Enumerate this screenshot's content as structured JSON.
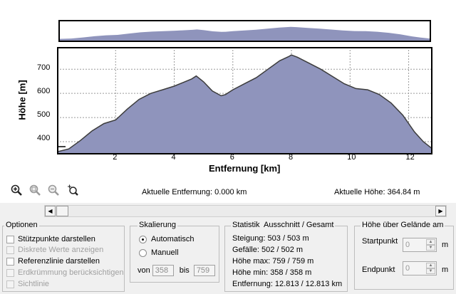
{
  "chart": {
    "ylabel": "Höhe [m]",
    "xlabel": "Entfernung [km]",
    "yticks": [
      "400",
      "500",
      "600",
      "700"
    ],
    "xticks": [
      "2",
      "4",
      "6",
      "8",
      "10",
      "12"
    ],
    "fill_color": "#8f94bc",
    "line_color": "#3c3c3c"
  },
  "chart_data": {
    "type": "area",
    "xlabel": "Entfernung [km]",
    "ylabel": "Höhe [m]",
    "xlim": [
      0,
      12.813
    ],
    "ylim": [
      347,
      792
    ],
    "x": [
      0,
      0.4,
      0.8,
      1.2,
      1.6,
      2.0,
      2.4,
      2.8,
      3.2,
      3.6,
      4.0,
      4.3,
      4.6,
      4.75,
      5.0,
      5.3,
      5.6,
      5.75,
      6.0,
      6.4,
      6.8,
      7.2,
      7.6,
      7.9,
      8.0,
      8.2,
      8.6,
      9.0,
      9.4,
      9.8,
      10.2,
      10.6,
      11.0,
      11.4,
      11.8,
      12.2,
      12.5,
      12.813
    ],
    "y": [
      358,
      370,
      405,
      445,
      475,
      490,
      535,
      575,
      600,
      615,
      630,
      645,
      660,
      672,
      648,
      610,
      590,
      595,
      615,
      640,
      665,
      700,
      735,
      752,
      759,
      750,
      725,
      700,
      670,
      640,
      620,
      615,
      595,
      560,
      510,
      440,
      400,
      370
    ]
  },
  "toolbar": {
    "icons": [
      "zoom-in-icon",
      "zoom-selection-icon",
      "zoom-out-icon",
      "zoom-reset-icon"
    ]
  },
  "status": {
    "distance": "Aktuelle Entfernung: 0.000 km",
    "height": "Aktuelle Höhe: 364.84 m"
  },
  "options": {
    "title": "Optionen",
    "items": [
      {
        "label": "Stützpunkte darstellen",
        "enabled": true,
        "checked": false
      },
      {
        "label": "Diskrete Werte anzeigen",
        "enabled": false,
        "checked": false
      },
      {
        "label": "Referenzlinie darstellen",
        "enabled": true,
        "checked": false
      },
      {
        "label": "Erdkrümmung berücksichtigen",
        "enabled": false,
        "checked": false
      },
      {
        "label": "Sichtlinie",
        "enabled": false,
        "checked": false
      }
    ]
  },
  "scaling": {
    "title": "Skalierung",
    "automatic": "Automatisch",
    "manual": "Manuell",
    "from_label": "von",
    "to_label": "bis",
    "from_value": "358",
    "to_value": "759"
  },
  "stats": {
    "title": "Statistik  Ausschnitt / Gesamt",
    "lines": [
      "Steigung: 503 / 503 m",
      "Gefälle: 502 / 502 m",
      "Höhe max: 759 / 759 m",
      "Höhe min: 358 / 358 m",
      "Entfernung: 12.813 / 12.813 km"
    ]
  },
  "terrain": {
    "title": "Höhe über Gelände am",
    "start_label": "Startpunkt",
    "end_label": "Endpunkt",
    "start_value": "0",
    "end_value": "0",
    "unit": "m"
  }
}
